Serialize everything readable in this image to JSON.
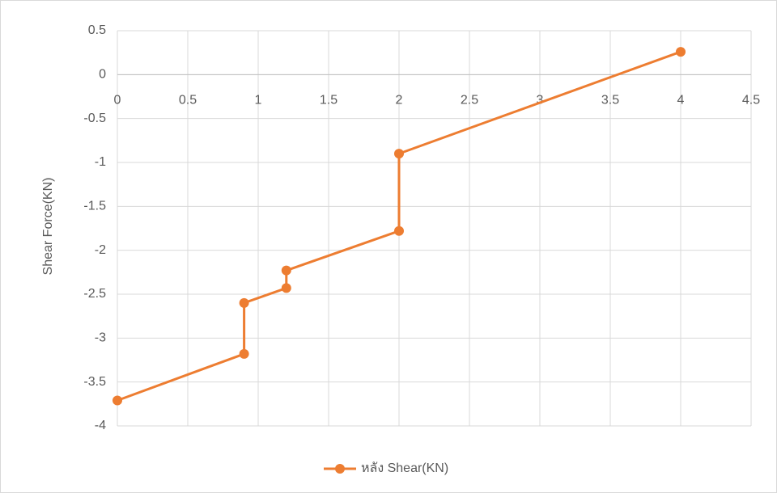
{
  "chart_data": {
    "type": "line",
    "y_label": "Shear Force(KN)",
    "x": [
      0,
      0.9,
      0.9,
      1.2,
      1.2,
      2,
      2,
      4
    ],
    "series": [
      {
        "name": "หลัง Shear(KN)",
        "color": "#ed7d31",
        "values": [
          -3.71,
          -3.18,
          -2.6,
          -2.43,
          -2.23,
          -1.78,
          -0.9,
          0.26
        ]
      }
    ],
    "xlim": [
      0,
      4.5
    ],
    "xticks": [
      0,
      0.5,
      1,
      1.5,
      2,
      2.5,
      3,
      3.5,
      4,
      4.5
    ],
    "ylim": [
      -4,
      0.5
    ],
    "yticks": [
      0.5,
      0,
      -0.5,
      -1,
      -1.5,
      -2,
      -2.5,
      -3,
      -3.5,
      -4
    ],
    "grid": true
  }
}
